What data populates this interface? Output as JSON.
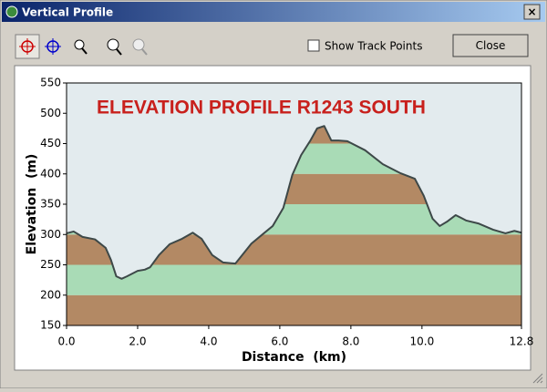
{
  "window": {
    "title": "Vertical Profile",
    "checkbox_label": "Show Track Points",
    "close_button": "Close"
  },
  "chart_data": {
    "type": "area",
    "title": "ELEVATION PROFILE R1243 SOUTH",
    "x_label": "Distance  (km)",
    "y_label": "Elevation  (m)",
    "x": [
      0,
      0.2,
      0.45,
      0.8,
      1.1,
      1.25,
      1.4,
      1.55,
      1.7,
      2.0,
      2.2,
      2.35,
      2.6,
      2.9,
      3.25,
      3.55,
      3.8,
      4.1,
      4.4,
      4.75,
      4.9,
      5.2,
      5.55,
      5.8,
      6.1,
      6.35,
      6.6,
      6.85,
      7.05,
      7.25,
      7.45,
      7.65,
      7.9,
      8.4,
      8.9,
      9.4,
      9.8,
      10.05,
      10.3,
      10.5,
      10.7,
      10.95,
      11.25,
      11.6,
      12.0,
      12.35,
      12.6,
      12.8
    ],
    "values": [
      302,
      305,
      296,
      292,
      278,
      258,
      231,
      227,
      231,
      240,
      242,
      246,
      266,
      284,
      293,
      303,
      293,
      266,
      254,
      252,
      263,
      285,
      302,
      314,
      344,
      398,
      431,
      454,
      475,
      479,
      455,
      455,
      454,
      439,
      416,
      401,
      392,
      364,
      326,
      314,
      321,
      332,
      323,
      318,
      308,
      302,
      306,
      303
    ],
    "xlim": [
      0,
      12.8
    ],
    "ylim": [
      150,
      550
    ],
    "xticks": [
      {
        "value": 0,
        "label": "0.0"
      },
      {
        "value": 2,
        "label": "2.0"
      },
      {
        "value": 4,
        "label": "4.0"
      },
      {
        "value": 6,
        "label": "6.0"
      },
      {
        "value": 8,
        "label": "8.0"
      },
      {
        "value": 10,
        "label": "10.0"
      },
      12.8
    ],
    "yticks": [
      150,
      200,
      250,
      300,
      350,
      400,
      450,
      500,
      550
    ],
    "band_colors": [
      "#b38964",
      "#a9dbb6"
    ],
    "line_color": "#3d4848",
    "background": "#e3ebee",
    "title_color": "#c8201c"
  }
}
